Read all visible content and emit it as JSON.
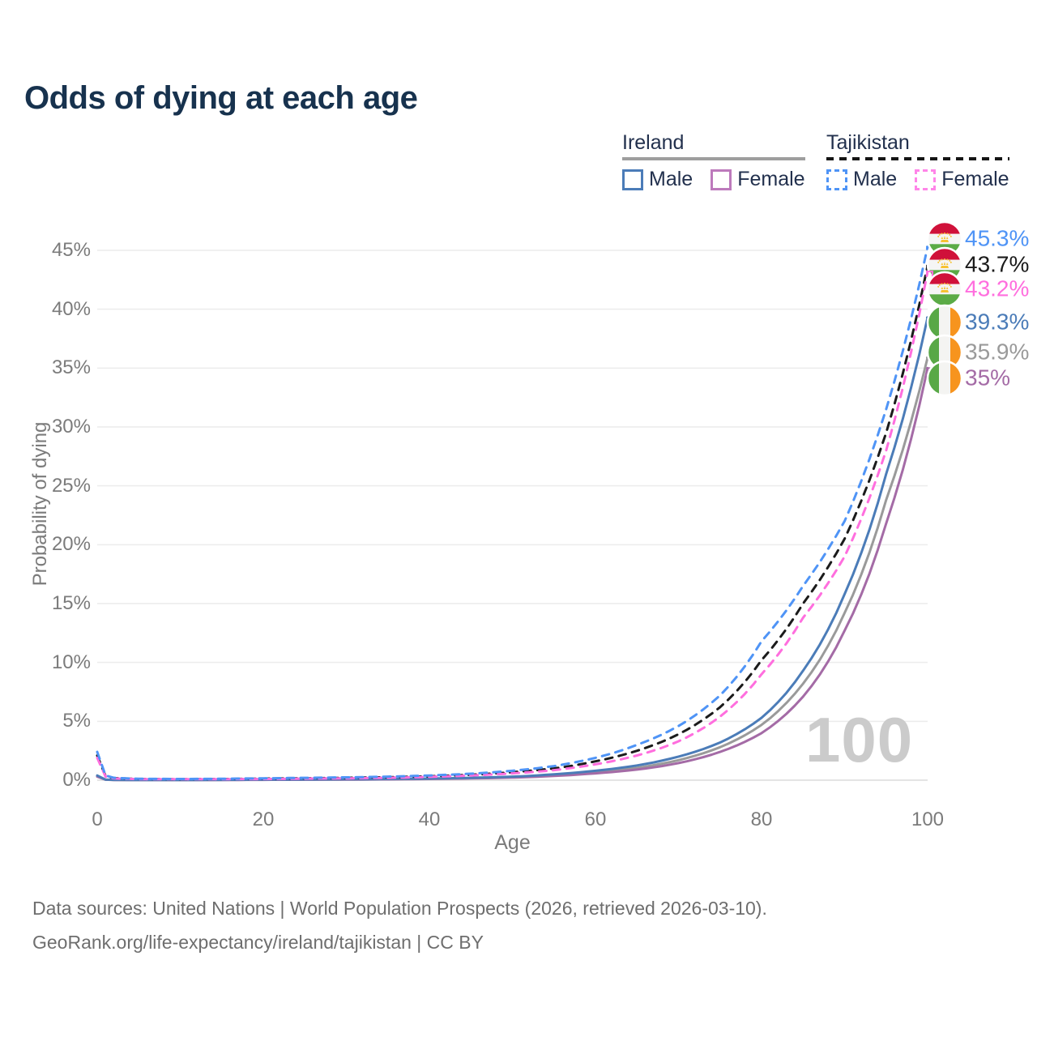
{
  "title": "Odds of dying at each age",
  "colors": {
    "title_text": "#17324e",
    "legend_text": "#22304d",
    "axis_text": "#7b7b7b",
    "gridline": "#ececec",
    "zero_gridline": "#dcdcdc",
    "watermark_text": "#cbcbcb",
    "footer_text": "#6e6e6e",
    "ireland_underline": "#9e9e9e",
    "tajikistan_underline": "#151515"
  },
  "legend": {
    "groups": [
      {
        "name": "Ireland",
        "line_style": "solid",
        "items": [
          {
            "label": "Male",
            "color": "#4b7cb8",
            "dash": false
          },
          {
            "label": "Female",
            "color": "#bd7abc",
            "dash": false
          }
        ]
      },
      {
        "name": "Tajikistan",
        "line_style": "dashed",
        "items": [
          {
            "label": "Male",
            "color": "#4f94f6",
            "dash": true
          },
          {
            "label": "Female",
            "color": "#ff85e8",
            "dash": true
          }
        ]
      }
    ]
  },
  "chart_data": {
    "type": "line",
    "title": "Odds of dying at each age",
    "xlabel": "Age",
    "ylabel": "Probability of dying",
    "xlim": [
      0,
      100
    ],
    "ylim": [
      0,
      47
    ],
    "grid": "horizontal-only",
    "legend_position": "top-right",
    "xticks": [
      0,
      20,
      40,
      60,
      80,
      100
    ],
    "yticks": [
      0,
      5,
      10,
      15,
      20,
      25,
      30,
      35,
      40,
      45
    ],
    "ytick_labels": [
      "0%",
      "5%",
      "10%",
      "15%",
      "20%",
      "25%",
      "30%",
      "35%",
      "40%",
      "45%"
    ],
    "watermark": "100",
    "x_unit": "years of age",
    "y_unit": "percent probability of dying at that age",
    "anchor_ages": [
      0,
      1,
      2,
      5,
      10,
      15,
      20,
      25,
      30,
      35,
      40,
      45,
      50,
      55,
      60,
      65,
      70,
      75,
      80,
      85,
      90,
      95,
      100
    ],
    "series": [
      {
        "name": "Ireland Both sexes",
        "key": "ireland-both",
        "country": "Ireland",
        "sex": "Both",
        "color": "#9a9a9a",
        "dash": false,
        "flag": "ireland",
        "end_label": "35.9%",
        "end_value": 35.9,
        "values": [
          0.35,
          0.04,
          0.025,
          0.018,
          0.018,
          0.025,
          0.04,
          0.05,
          0.06,
          0.08,
          0.12,
          0.17,
          0.26,
          0.42,
          0.68,
          1.05,
          1.7,
          2.8,
          4.7,
          8.2,
          14.2,
          23.8,
          35.9
        ]
      },
      {
        "name": "Ireland Female",
        "key": "ireland-female",
        "country": "Ireland",
        "sex": "Female",
        "color": "#a46ba6",
        "dash": false,
        "flag": "ireland",
        "end_label": "35%",
        "end_value": 35.0,
        "values": [
          0.3,
          0.04,
          0.02,
          0.015,
          0.015,
          0.02,
          0.03,
          0.04,
          0.05,
          0.07,
          0.1,
          0.15,
          0.22,
          0.36,
          0.58,
          0.9,
          1.45,
          2.4,
          4.0,
          7.1,
          12.7,
          21.8,
          35.0
        ]
      },
      {
        "name": "Ireland Male",
        "key": "ireland-male",
        "country": "Ireland",
        "sex": "Male",
        "color": "#4b7cb8",
        "dash": false,
        "flag": "ireland",
        "end_label": "39.3%",
        "end_value": 39.3,
        "values": [
          0.4,
          0.05,
          0.03,
          0.02,
          0.02,
          0.03,
          0.05,
          0.06,
          0.08,
          0.1,
          0.14,
          0.2,
          0.3,
          0.5,
          0.8,
          1.25,
          2.0,
          3.2,
          5.3,
          9.3,
          15.8,
          26.0,
          39.3
        ]
      },
      {
        "name": "Tajikistan Both sexes",
        "key": "tajikistan-both",
        "country": "Tajikistan",
        "sex": "Both",
        "color": "#1b1b1b",
        "dash": true,
        "flag": "tajikistan",
        "end_label": "43.7%",
        "end_value": 43.7,
        "values": [
          2.1,
          0.35,
          0.18,
          0.1,
          0.09,
          0.1,
          0.13,
          0.16,
          0.2,
          0.25,
          0.33,
          0.46,
          0.68,
          1.0,
          1.6,
          2.5,
          3.9,
          6.2,
          10.2,
          15.0,
          20.5,
          29.5,
          43.7
        ]
      },
      {
        "name": "Tajikistan Female",
        "key": "tajikistan-female",
        "country": "Tajikistan",
        "sex": "Female",
        "color": "#ff6ede",
        "dash": true,
        "flag": "tajikistan",
        "end_label": "43.2%",
        "end_value": 43.2,
        "values": [
          1.9,
          0.3,
          0.15,
          0.09,
          0.08,
          0.09,
          0.1,
          0.13,
          0.16,
          0.2,
          0.28,
          0.4,
          0.58,
          0.85,
          1.35,
          2.1,
          3.3,
          5.4,
          9.0,
          13.8,
          19.0,
          28.0,
          43.2
        ]
      },
      {
        "name": "Tajikistan Male",
        "key": "tajikistan-male",
        "country": "Tajikistan",
        "sex": "Male",
        "color": "#4f94f6",
        "dash": true,
        "flag": "tajikistan",
        "end_label": "45.3%",
        "end_value": 45.3,
        "values": [
          2.4,
          0.4,
          0.2,
          0.12,
          0.1,
          0.12,
          0.16,
          0.2,
          0.24,
          0.3,
          0.4,
          0.55,
          0.8,
          1.2,
          1.9,
          3.0,
          4.6,
          7.2,
          11.8,
          16.5,
          22.0,
          31.5,
          45.3
        ]
      }
    ],
    "flag_colors": {
      "tajikistan": {
        "red": "#d0113a",
        "white": "#f5f5f5",
        "green": "#5bab46",
        "gold": "#f6c232"
      },
      "ireland": {
        "green": "#58a846",
        "white": "#f4f4f2",
        "orange": "#f7941e"
      }
    }
  },
  "footer": {
    "line1": "Data sources: United Nations | World Population Prospects (2026, retrieved 2026-03-10).",
    "line2": "GeoRank.org/life-expectancy/ireland/tajikistan | CC BY"
  }
}
